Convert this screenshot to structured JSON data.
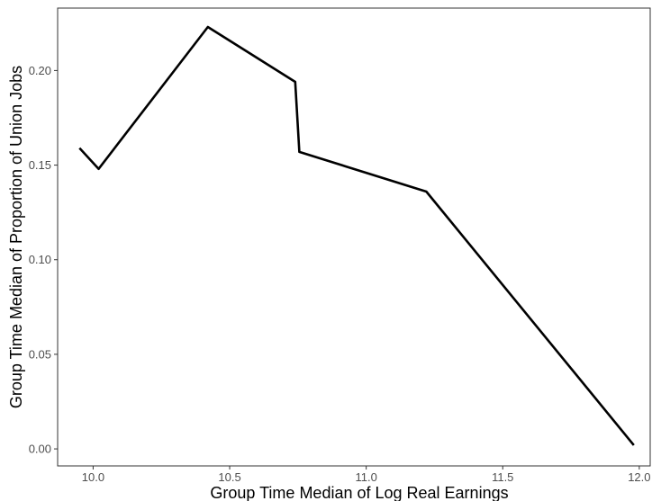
{
  "chart_data": {
    "type": "line",
    "title": "",
    "xlabel": "Group Time Median of Log Real Earnings",
    "ylabel": "Group Time Median of Proportion of Union Jobs",
    "x_ticks": [
      10.0,
      10.5,
      11.0,
      11.5,
      12.0
    ],
    "x_tick_labels": [
      "10.0",
      "10.5",
      "11.0",
      "11.5",
      "12.0"
    ],
    "y_ticks": [
      0.0,
      0.05,
      0.1,
      0.15,
      0.2
    ],
    "y_tick_labels": [
      "0.00",
      "0.05",
      "0.10",
      "0.15",
      "0.20"
    ],
    "xlim": [
      9.87,
      12.04
    ],
    "ylim": [
      -0.009,
      0.233
    ],
    "grid": false,
    "series": [
      {
        "color": "#000000",
        "points": [
          {
            "x": 9.95,
            "y": 0.159
          },
          {
            "x": 10.02,
            "y": 0.148
          },
          {
            "x": 10.42,
            "y": 0.223
          },
          {
            "x": 10.74,
            "y": 0.194
          },
          {
            "x": 10.755,
            "y": 0.157
          },
          {
            "x": 11.22,
            "y": 0.136
          },
          {
            "x": 11.98,
            "y": 0.002
          }
        ]
      }
    ]
  }
}
